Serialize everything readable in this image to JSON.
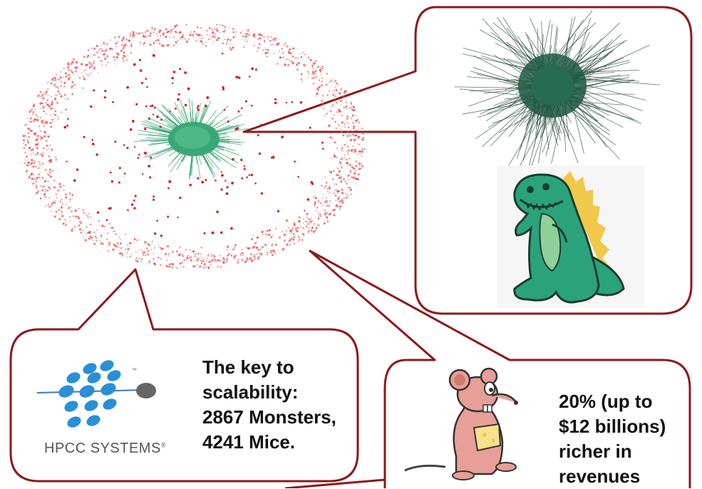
{
  "callouts": {
    "hpcc": {
      "lines": [
        "The key to",
        "scalability:",
        "2867 Monsters,",
        "4241 Mice."
      ]
    },
    "mice": {
      "lines": [
        "20% (up to",
        "$12 billions)",
        "richer in",
        "revenues"
      ]
    }
  },
  "logo": {
    "text": "HPCC SYSTEMS",
    "registered": "®",
    "trademark": "™"
  },
  "colors": {
    "callout_border": "#8b1a1a",
    "outer_nodes": "#e25555",
    "core_nodes": "#2e9e6b",
    "monster_green": "#2aa37b",
    "mouse_pink": "#e79f97",
    "logo_blue": "#2a8fd6"
  },
  "icons": [
    "monster-icon",
    "mouse-icon",
    "hpcc-logo-icon",
    "network-graph"
  ]
}
